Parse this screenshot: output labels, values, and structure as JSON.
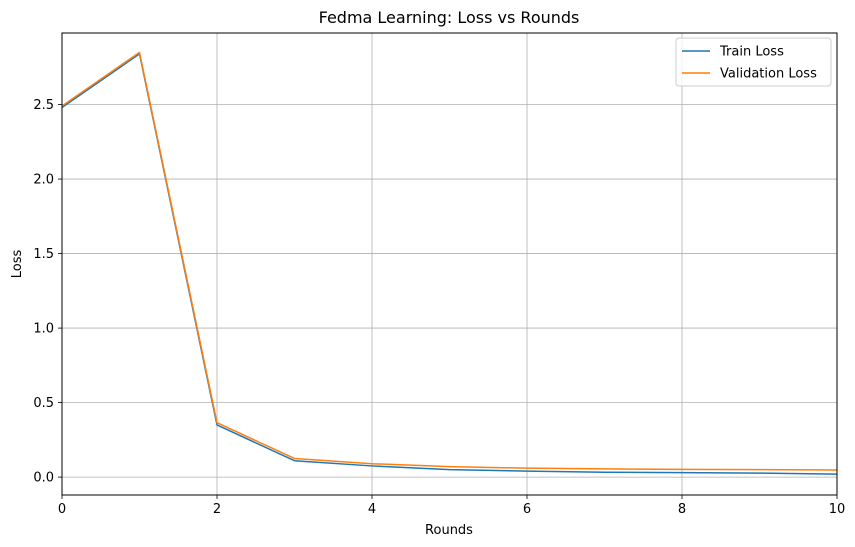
{
  "chart_data": {
    "type": "line",
    "title": "Fedma Learning: Loss vs Rounds",
    "xlabel": "Rounds",
    "ylabel": "Loss",
    "xlim": [
      0,
      10
    ],
    "ylim": [
      -0.12,
      2.98
    ],
    "grid": true,
    "legend_position": "top-right",
    "x_ticks": [
      0,
      2,
      4,
      6,
      8,
      10
    ],
    "y_ticks": [
      0.0,
      0.5,
      1.0,
      1.5,
      2.0,
      2.5
    ],
    "x_tick_labels": [
      "0",
      "2",
      "4",
      "6",
      "8",
      "10"
    ],
    "y_tick_labels": [
      "0.0",
      "0.5",
      "1.0",
      "1.5",
      "2.0",
      "2.5"
    ],
    "x": [
      0,
      1,
      2,
      3,
      4,
      5,
      6,
      7,
      8,
      9,
      10
    ],
    "series": [
      {
        "name": "Train Loss",
        "color": "#1f77b4",
        "values": [
          2.48,
          2.84,
          0.35,
          0.11,
          0.075,
          0.05,
          0.04,
          0.033,
          0.03,
          0.027,
          0.02
        ]
      },
      {
        "name": "Validation Loss",
        "color": "#ff7f0e",
        "values": [
          2.49,
          2.85,
          0.365,
          0.125,
          0.09,
          0.07,
          0.06,
          0.055,
          0.052,
          0.05,
          0.048
        ]
      }
    ]
  }
}
